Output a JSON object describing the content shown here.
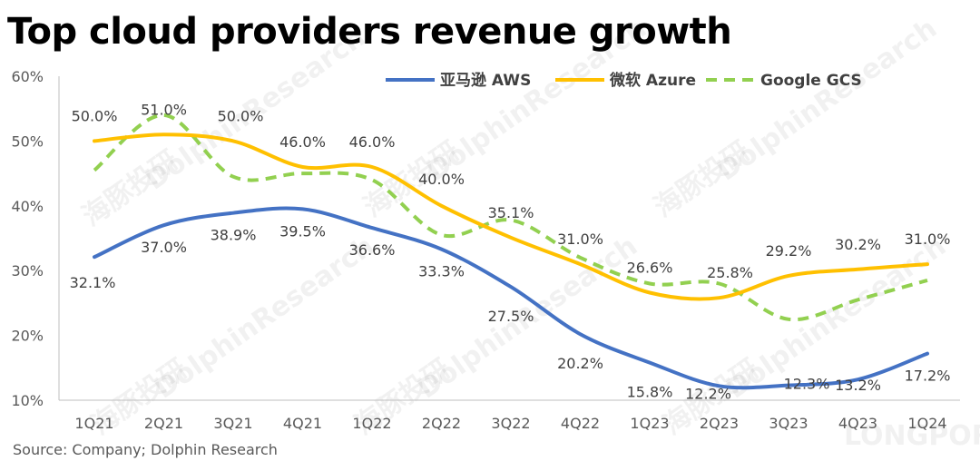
{
  "title": "Top cloud providers revenue growth",
  "source": "Source: Company; Dolphin Research",
  "watermark": "DolphinResearch",
  "watermark_cn": "海豚投研",
  "watermark_brand": "LONGPORT",
  "chart_data": {
    "type": "line",
    "categories": [
      "1Q21",
      "2Q21",
      "3Q21",
      "4Q21",
      "1Q22",
      "2Q22",
      "3Q22",
      "4Q22",
      "1Q23",
      "2Q23",
      "3Q23",
      "4Q23",
      "1Q24"
    ],
    "ylim": [
      10,
      60
    ],
    "yticks": [
      10,
      20,
      30,
      40,
      50,
      60
    ],
    "ytick_labels": [
      "10%",
      "20%",
      "30%",
      "40%",
      "50%",
      "60%"
    ],
    "grid": false,
    "legend_position": "top-right",
    "series": [
      {
        "name": "亚马逊 AWS",
        "color": "#4472C4",
        "style": "solid",
        "values": [
          32.1,
          37.0,
          38.9,
          39.5,
          36.6,
          33.3,
          27.5,
          20.2,
          15.8,
          12.2,
          12.3,
          13.2,
          17.2
        ],
        "labels": [
          "32.1%",
          "37.0%",
          "38.9%",
          "39.5%",
          "36.6%",
          "33.3%",
          "27.5%",
          "20.2%",
          "15.8%",
          "12.2%",
          "12.3%",
          "13.2%",
          "17.2%"
        ]
      },
      {
        "name": "微软 Azure",
        "color": "#FFC000",
        "style": "solid",
        "values": [
          50.0,
          51.0,
          50.0,
          46.0,
          46.0,
          40.0,
          35.1,
          31.0,
          26.6,
          25.8,
          29.2,
          30.2,
          31.0
        ],
        "labels": [
          "50.0%",
          "51.0%",
          "50.0%",
          "46.0%",
          "46.0%",
          "40.0%",
          "35.1%",
          "31.0%",
          "26.6%",
          "25.8%",
          "29.2%",
          "30.2%",
          "31.0%"
        ]
      },
      {
        "name": "Google GCS",
        "color": "#92D050",
        "style": "dashed",
        "values": [
          45.5,
          54.0,
          44.5,
          45.0,
          44.0,
          35.5,
          37.8,
          32.0,
          28.0,
          28.0,
          22.5,
          25.5,
          28.5
        ],
        "labels": []
      }
    ]
  }
}
